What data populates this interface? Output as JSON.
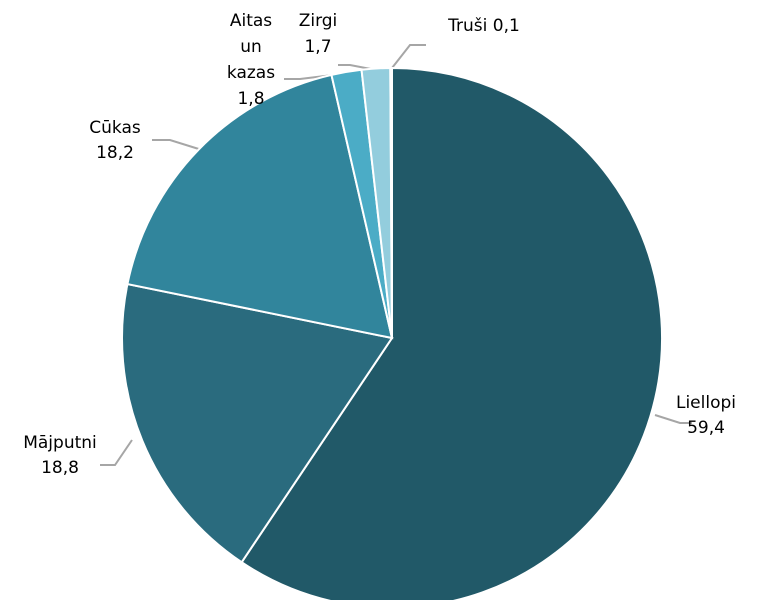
{
  "chart_data": {
    "type": "pie",
    "categories": [
      "Liellopi",
      "Mājputni",
      "Cūkas",
      "Aitas un kazas",
      "Zirgi",
      "Truši"
    ],
    "values": [
      59.4,
      18.8,
      18.2,
      1.8,
      1.7,
      0.1
    ],
    "value_labels": [
      "59,4",
      "18,8",
      "18,2",
      "1,8",
      "1,7",
      "0,1"
    ],
    "colors": [
      "#215968",
      "#2a6b7e",
      "#31859c",
      "#4bacc6",
      "#93cddd",
      "#b7dee8"
    ]
  }
}
